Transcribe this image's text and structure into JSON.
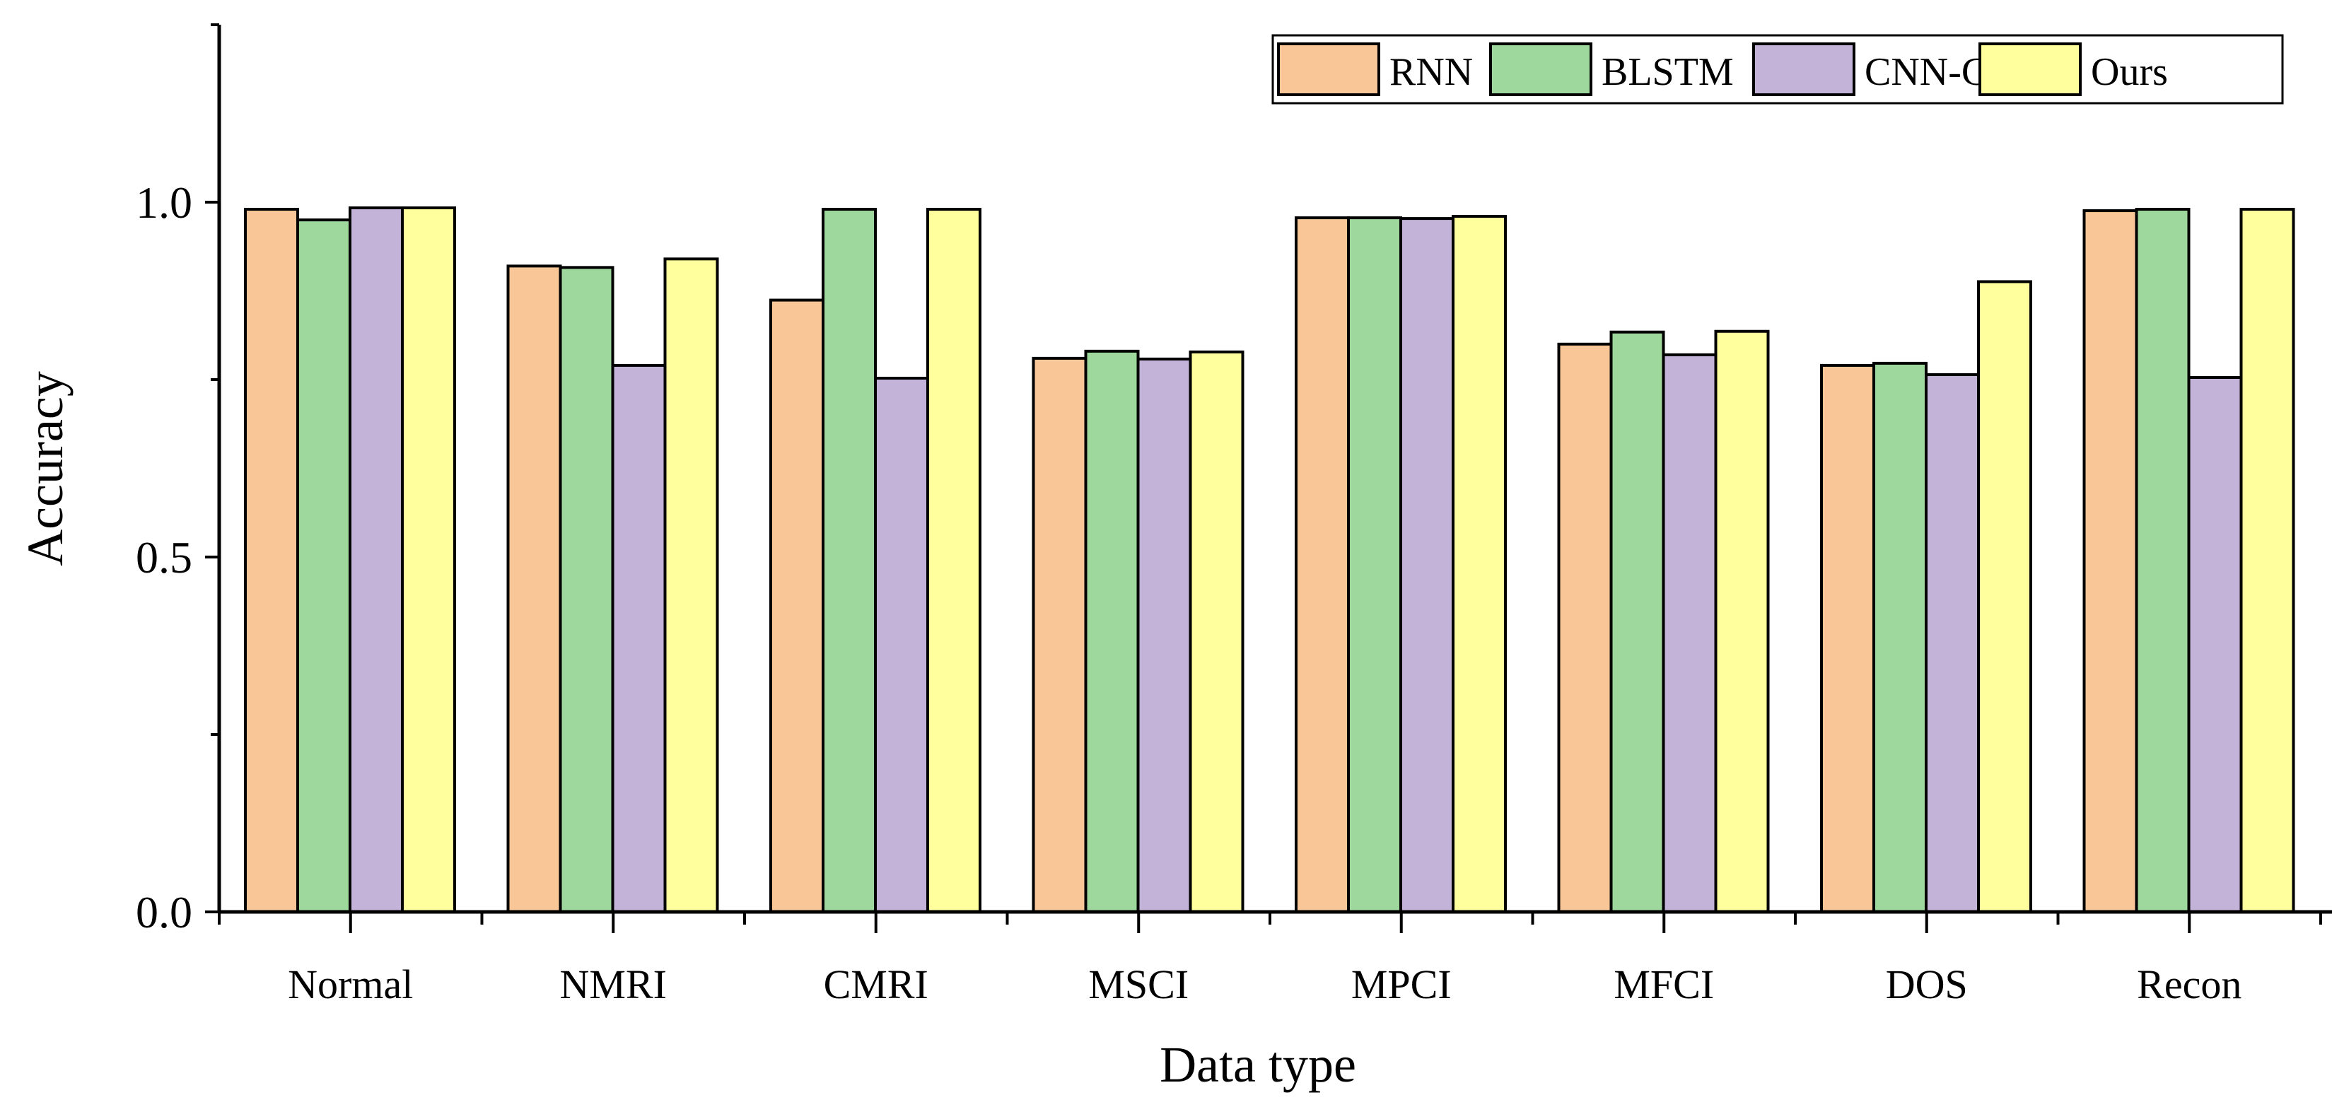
{
  "chart_data": {
    "type": "bar",
    "title": "",
    "xlabel": "Data type",
    "ylabel": "Accuracy",
    "ylim": [
      0,
      1.25
    ],
    "yticks": [
      0.0,
      0.5,
      1.0
    ],
    "ytick_labels": [
      "0.0",
      "0.5",
      "1.0"
    ],
    "grid": false,
    "legend_position": "top-right",
    "categories": [
      "Normal",
      "NMRI",
      "CMRI",
      "MSCI",
      "MPCI",
      "MFCI",
      "DOS",
      "Recon"
    ],
    "series": [
      {
        "name": "RNN",
        "color": "#F9C797",
        "values": [
          0.99,
          0.91,
          0.862,
          0.78,
          0.978,
          0.8,
          0.77,
          0.988
        ]
      },
      {
        "name": "BLSTM",
        "color": "#9FD89C",
        "values": [
          0.975,
          0.908,
          0.99,
          0.79,
          0.978,
          0.817,
          0.773,
          0.99
        ]
      },
      {
        "name": "CNN-GRU",
        "color": "#C3B3D8",
        "values": [
          0.992,
          0.77,
          0.752,
          0.779,
          0.977,
          0.785,
          0.757,
          0.753
        ]
      },
      {
        "name": "Ours",
        "color": "#FFFF9E",
        "values": [
          0.992,
          0.92,
          0.99,
          0.789,
          0.98,
          0.818,
          0.888,
          0.99
        ]
      }
    ]
  }
}
